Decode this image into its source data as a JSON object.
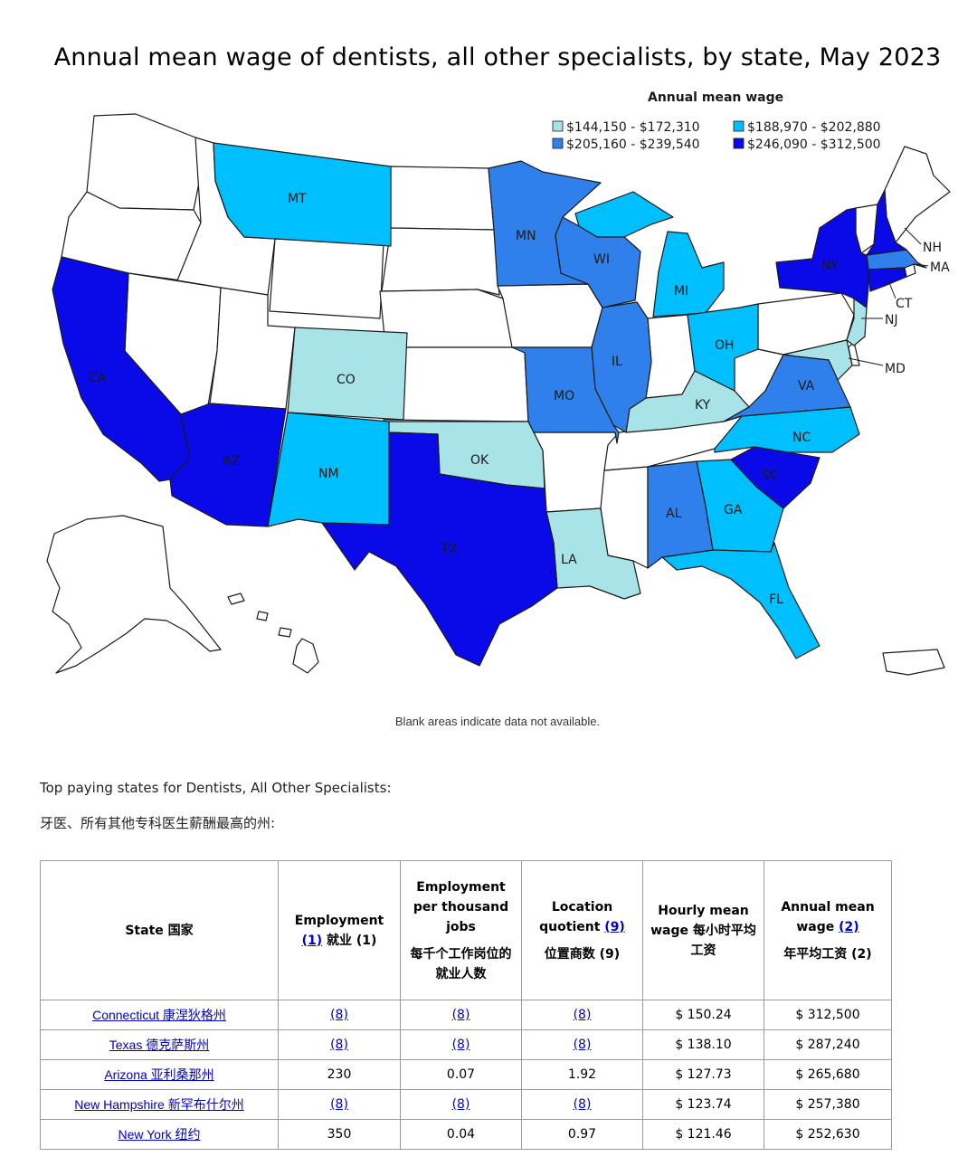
{
  "map": {
    "title": "Annual mean wage of dentists, all other specialists, by state, May 2023",
    "legend_title": "Annual mean wage",
    "legend": [
      {
        "label": "$144,150 - $172,310",
        "color": "#a8e3e8"
      },
      {
        "label": "$188,970 - $202,880",
        "color": "#00bfff"
      },
      {
        "label": "$205,160 - $239,540",
        "color": "#2f80ea"
      },
      {
        "label": "$246,090 - $312,500",
        "color": "#0a0ae8"
      }
    ],
    "no_data_color": "#ffffff",
    "note": "Blank areas indicate data not available.",
    "state_labels": {
      "MT": "MT",
      "MN": "MN",
      "WI": "WI",
      "MI": "MI",
      "NY": "NY",
      "NH": "NH",
      "MA": "MA",
      "CT": "CT",
      "NJ": "NJ",
      "MD": "MD",
      "CA": "CA",
      "CO": "CO",
      "IL": "IL",
      "OH": "OH",
      "MO": "MO",
      "KY": "KY",
      "VA": "VA",
      "NC": "NC",
      "AZ": "AZ",
      "NM": "NM",
      "OK": "OK",
      "SC": "SC",
      "AL": "AL",
      "GA": "GA",
      "TX": "TX",
      "LA": "LA",
      "FL": "FL"
    }
  },
  "intro": {
    "en": "Top paying states for Dentists, All Other Specialists:",
    "zh": "牙医、所有其他专科医生薪酬最高的州:"
  },
  "table": {
    "headers": {
      "state": "State 国家",
      "employment": "Employment",
      "employment_note": "(1)",
      "employment_zh": "就业 (1)",
      "per_thousand": "Employment per thousand jobs",
      "per_thousand_zh": "每千个工作岗位的就业人数",
      "lq": "Location quotient",
      "lq_note": "(9)",
      "lq_zh": "位置商数 (9)",
      "hourly": "Hourly mean wage 每小时平均工资",
      "annual": "Annual mean wage",
      "annual_note": "(2)",
      "annual_zh": "年平均工资 (2)"
    },
    "rows": [
      {
        "state": "Connecticut 康涅狄格州",
        "employment": "(8)",
        "per_thousand": "(8)",
        "lq": "(8)",
        "hourly": "$ 150.24",
        "annual": "$ 312,500"
      },
      {
        "state": "Texas 德克萨斯州",
        "employment": "(8)",
        "per_thousand": "(8)",
        "lq": "(8)",
        "hourly": "$ 138.10",
        "annual": "$ 287,240"
      },
      {
        "state": "Arizona 亚利桑那州",
        "employment": "230",
        "per_thousand": "0.07",
        "lq": "1.92",
        "hourly": "$ 127.73",
        "annual": "$ 265,680"
      },
      {
        "state": "New Hampshire 新罕布什尔州",
        "employment": "(8)",
        "per_thousand": "(8)",
        "lq": "(8)",
        "hourly": "$ 123.74",
        "annual": "$ 257,380"
      },
      {
        "state": "New York 纽约",
        "employment": "350",
        "per_thousand": "0.04",
        "lq": "0.97",
        "hourly": "$ 121.46",
        "annual": "$ 252,630"
      }
    ]
  }
}
